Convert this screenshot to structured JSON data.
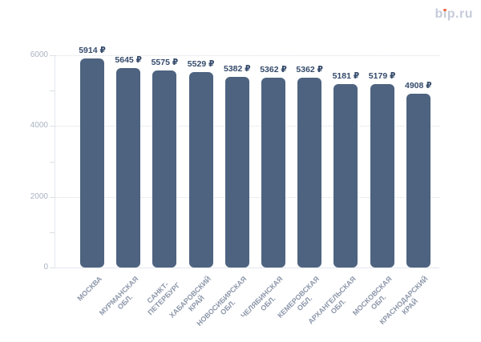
{
  "logo": {
    "text": "bip.ru",
    "b": "b",
    "i_body": "ı",
    "rest": "p.ru",
    "dot_color": "#ed6a45"
  },
  "chart_data": {
    "type": "bar",
    "title": "",
    "xlabel": "",
    "ylabel": "",
    "categories": [
      "МОСКВА",
      "МУРМАНСКАЯ\nОБЛ.",
      "САНКТ-\nПЕТЕРБУРГ",
      "ХАБАРОВСКИЙ\nКРАЙ",
      "НОВОСИБИРСКАЯ\nОБЛ.",
      "ЧЕЛЯБИНСКАЯ\nОБЛ.",
      "КЕМЕРОВСКАЯ\nОБЛ.",
      "АРХАНГЕЛЬСКАЯ\nОБЛ.",
      "МОСКОВСКАЯ\nОБЛ.",
      "КРАСНОДАРСКИЙ\nКРАЙ"
    ],
    "values": [
      5914,
      5645,
      5575,
      5529,
      5382,
      5362,
      5362,
      5181,
      5179,
      4908
    ],
    "value_labels": [
      "5914 ₽",
      "5645 ₽",
      "5575 ₽",
      "5529 ₽",
      "5382 ₽",
      "5362 ₽",
      "5362 ₽",
      "5181 ₽",
      "5179 ₽",
      "4908 ₽"
    ],
    "currency_suffix": "₽",
    "ylim": [
      0,
      6000
    ],
    "ytick_major": [
      0,
      2000,
      4000,
      6000
    ],
    "ytick_major_labels": [
      "0",
      "2000",
      "4000",
      "6000"
    ],
    "ytick_minor": [
      1000,
      3000,
      5000
    ],
    "grid": "horizontal dotted lines at major ticks",
    "legend": "none",
    "bar_color": "#4d6380",
    "value_label_color": "#344a6b",
    "ytick_label_color": "#a9b2c3",
    "xtick_label_color": "#8d97aa"
  }
}
